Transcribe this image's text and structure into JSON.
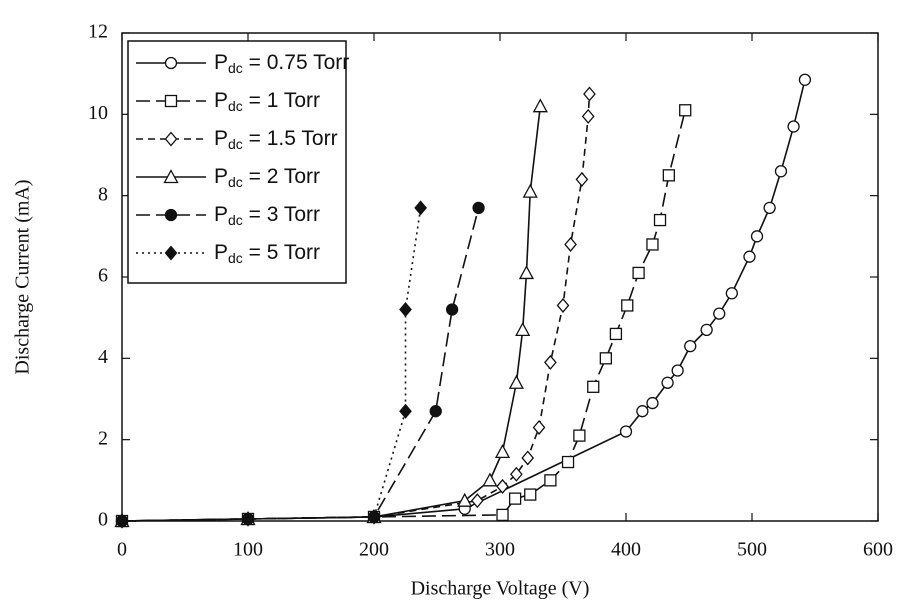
{
  "chart_data": {
    "type": "line",
    "x_label": "Discharge Voltage (V)",
    "y_label": "Discharge Current (mA)",
    "xlim": [
      0,
      600
    ],
    "xticks": [
      0,
      100,
      200,
      300,
      400,
      500,
      600
    ],
    "ylim": [
      0,
      12
    ],
    "yticks": [
      0,
      2,
      4,
      6,
      8,
      10,
      12
    ],
    "legend": "upper left",
    "series": [
      {
        "name": "Pdc = 0.75 Torr",
        "color": "#111111",
        "marker": "circle",
        "filled": false,
        "dash": "solid",
        "x": [
          0,
          100,
          200,
          272,
          400,
          413,
          421,
          433,
          441,
          451,
          464,
          474,
          484,
          498,
          504,
          514,
          523,
          533,
          542
        ],
        "values": [
          0,
          0.05,
          0.1,
          0.3,
          2.2,
          2.7,
          2.9,
          3.4,
          3.7,
          4.3,
          4.7,
          5.1,
          5.6,
          6.5,
          7.0,
          7.7,
          8.6,
          9.7,
          10.85
        ]
      },
      {
        "name": "Pdc = 1 Torr",
        "color": "#111111",
        "marker": "square",
        "filled": false,
        "dash": "long",
        "x": [
          0,
          100,
          200,
          302,
          312,
          324,
          340,
          354,
          363,
          374,
          384,
          392,
          401,
          410,
          421,
          427,
          434,
          447
        ],
        "values": [
          0,
          0.05,
          0.1,
          0.15,
          0.55,
          0.65,
          1.0,
          1.45,
          2.1,
          3.3,
          4.0,
          4.6,
          5.3,
          6.1,
          6.8,
          7.4,
          8.5,
          10.1
        ]
      },
      {
        "name": "Pdc = 1.5 Torr",
        "color": "#111111",
        "marker": "diamond",
        "filled": false,
        "dash": "dashed",
        "x": [
          0,
          100,
          200,
          282,
          302,
          313,
          322,
          331,
          340,
          350,
          356,
          365,
          370,
          371
        ],
        "values": [
          0,
          0.05,
          0.1,
          0.5,
          0.85,
          1.15,
          1.55,
          2.3,
          3.9,
          5.3,
          6.8,
          8.4,
          9.95,
          10.5
        ]
      },
      {
        "name": "Pdc = 2 Torr",
        "color": "#111111",
        "marker": "triangle",
        "filled": false,
        "dash": "solid",
        "x": [
          0,
          100,
          200,
          272,
          292,
          302,
          313,
          318,
          321,
          324,
          332
        ],
        "values": [
          0,
          0.05,
          0.1,
          0.5,
          1.0,
          1.7,
          3.4,
          4.7,
          6.1,
          8.1,
          10.2
        ]
      },
      {
        "name": "Pdc = 3 Torr",
        "color": "#111111",
        "marker": "circle",
        "filled": true,
        "dash": "long",
        "x": [
          0,
          100,
          200,
          249,
          262,
          283
        ],
        "values": [
          0,
          0.05,
          0.1,
          2.7,
          5.2,
          7.7
        ]
      },
      {
        "name": "Pdc = 5 Torr",
        "color": "#111111",
        "marker": "diamond",
        "filled": true,
        "dash": "dotted",
        "x": [
          0,
          100,
          200,
          225,
          225,
          237
        ],
        "values": [
          0,
          0.05,
          0.1,
          2.7,
          5.2,
          7.7
        ]
      }
    ]
  }
}
